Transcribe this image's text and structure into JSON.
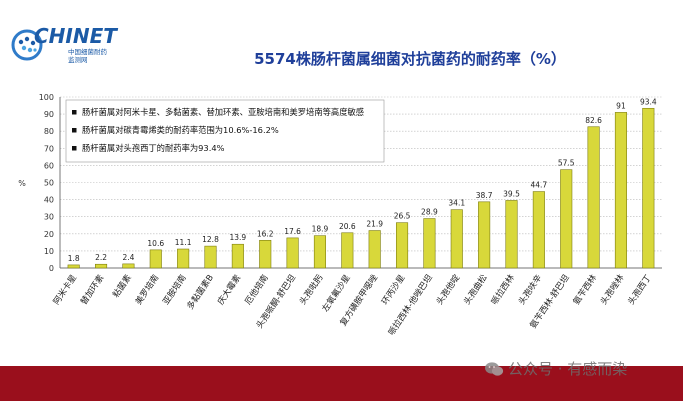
{
  "logo": {
    "name": "CHINET",
    "sub_line1": "中国细菌耐药",
    "sub_line2": "监测网"
  },
  "watermark": {
    "text": "公众号 · 有感而染",
    "icon": "wechat-icon"
  },
  "colors": {
    "bar": "#d8d83a",
    "bar_edge": "#7d7d10",
    "title": "#1f3f9a",
    "footer": "#9a0f1c",
    "grid": "#b9b9b9"
  },
  "chart_data": {
    "type": "bar",
    "title": "5574株肠杆菌属细菌对抗菌药的耐药率（%）",
    "ylabel": "%",
    "xlabel": "",
    "ylim": [
      0,
      100
    ],
    "yticks": [
      0,
      10,
      20,
      30,
      40,
      50,
      60,
      70,
      80,
      90,
      100
    ],
    "grid": true,
    "categories": [
      "阿米卡星",
      "替加环素",
      "粘菌素",
      "美罗培南",
      "亚胺培南",
      "多黏菌素B",
      "庆大霉素",
      "厄他培南",
      "头孢哌酮-舒巴坦",
      "头孢吡肟",
      "左氧氟沙星",
      "复方磺胺甲噁唑",
      "环丙沙星",
      "哌拉西林-他唑巴坦",
      "头孢他啶",
      "头孢曲松",
      "哌拉西林",
      "头孢呋辛",
      "氨苄西林-舒巴坦",
      "氨苄西林",
      "头孢唑林",
      "头孢西丁"
    ],
    "values": [
      1.8,
      2.2,
      2.4,
      10.6,
      11.1,
      12.8,
      13.9,
      16.2,
      17.6,
      18.9,
      20.6,
      21.9,
      26.5,
      28.9,
      34.1,
      38.7,
      39.5,
      44.7,
      57.5,
      82.6,
      91,
      93.4
    ],
    "value_labels": [
      "1.8",
      "2.2",
      "2.4",
      "10.6",
      "11.1",
      "12.8",
      "13.9",
      "16.2",
      "17.6",
      "18.9",
      "20.6",
      "21.9",
      "26.5",
      "28.9",
      "34.1",
      "38.7",
      "39.5",
      "44.7",
      "57.5",
      "82.6",
      "91",
      "93.4"
    ],
    "annotations": [
      "肠杆菌属对阿米卡星、多黏菌素、替加环素、亚胺培南和美罗培南等高度敏感",
      "肠杆菌属对碳青霉烯类的耐药率范围为10.6%-16.2%",
      "肠杆菌属对头孢西丁的耐药率为93.4%"
    ]
  }
}
